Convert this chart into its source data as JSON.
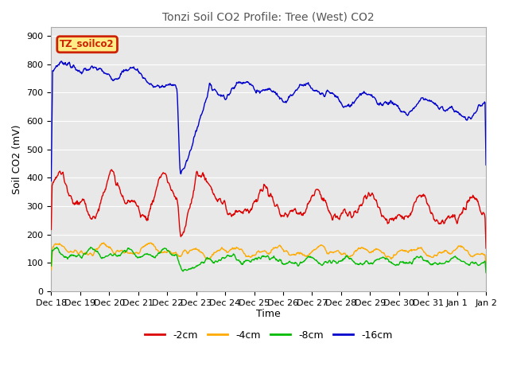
{
  "title": "Tonzi Soil CO2 Profile: Tree (West) CO2",
  "ylabel": "Soil CO2 (mV)",
  "xlabel": "Time",
  "ylim": [
    0,
    930
  ],
  "yticks": [
    0,
    100,
    200,
    300,
    400,
    500,
    600,
    700,
    800,
    900
  ],
  "bg_color": "#e8e8e8",
  "legend_label": "TZ_soilco2",
  "legend_bg": "#ffee88",
  "legend_edge": "#cc2200",
  "legend_text_color": "#cc2200",
  "series": {
    "-2cm": {
      "color": "#dd0000"
    },
    "-4cm": {
      "color": "#ffaa00"
    },
    "-8cm": {
      "color": "#00bb00"
    },
    "-16cm": {
      "color": "#0000cc"
    }
  },
  "xtick_labels": [
    "Dec 18",
    "Dec 19",
    "Dec 20",
    "Dec 21",
    "Dec 22",
    "Dec 23",
    "Dec 24",
    "Dec 25",
    "Dec 26",
    "Dec 27",
    "Dec 28",
    "Dec 29",
    "Dec 30",
    "Dec 31",
    "Jan 1",
    "Jan 2"
  ],
  "title_color": "#555555",
  "n_points": 960,
  "seed": 7
}
